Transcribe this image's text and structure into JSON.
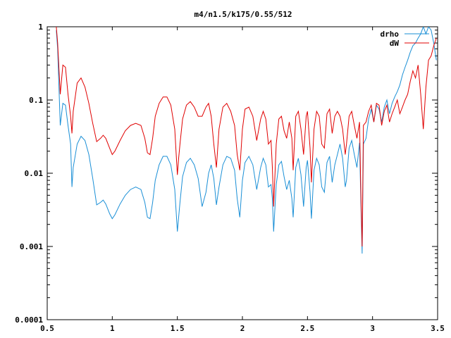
{
  "chart_data": {
    "type": "line",
    "title": "m4/n1.5/k175/0.55/512",
    "xlabel": "",
    "ylabel": "",
    "xlim": [
      0.5,
      3.5
    ],
    "ylim": [
      0.0001,
      1
    ],
    "yscale": "log",
    "grid": false,
    "legend_position": "top-right",
    "x_ticks": [
      {
        "value": 0.5,
        "label": "0.5"
      },
      {
        "value": 1.0,
        "label": "1"
      },
      {
        "value": 1.5,
        "label": "1.5"
      },
      {
        "value": 2.0,
        "label": "2"
      },
      {
        "value": 2.5,
        "label": "2.5"
      },
      {
        "value": 3.0,
        "label": "3"
      },
      {
        "value": 3.5,
        "label": "3.5"
      }
    ],
    "y_ticks": [
      {
        "value": 1,
        "label": "1"
      },
      {
        "value": 0.1,
        "label": "0.1"
      },
      {
        "value": 0.01,
        "label": "0.01"
      },
      {
        "value": 0.001,
        "label": "0.001"
      },
      {
        "value": 0.0001,
        "label": "0.0001"
      }
    ],
    "series": [
      {
        "name": "drho",
        "color": "#1a8fd6",
        "x": [
          0.57,
          0.58,
          0.6,
          0.62,
          0.64,
          0.66,
          0.68,
          0.69,
          0.7,
          0.73,
          0.76,
          0.79,
          0.82,
          0.85,
          0.88,
          0.91,
          0.93,
          0.95,
          0.98,
          1.0,
          1.02,
          1.06,
          1.1,
          1.14,
          1.18,
          1.22,
          1.25,
          1.27,
          1.29,
          1.31,
          1.33,
          1.36,
          1.39,
          1.42,
          1.45,
          1.48,
          1.5,
          1.51,
          1.52,
          1.54,
          1.57,
          1.6,
          1.63,
          1.66,
          1.69,
          1.72,
          1.74,
          1.76,
          1.78,
          1.8,
          1.82,
          1.85,
          1.88,
          1.91,
          1.94,
          1.96,
          1.98,
          2.0,
          2.02,
          2.05,
          2.08,
          2.11,
          2.14,
          2.16,
          2.18,
          2.2,
          2.22,
          2.23,
          2.24,
          2.26,
          2.28,
          2.3,
          2.32,
          2.34,
          2.36,
          2.38,
          2.39,
          2.41,
          2.43,
          2.45,
          2.47,
          2.49,
          2.5,
          2.52,
          2.53,
          2.55,
          2.57,
          2.59,
          2.61,
          2.63,
          2.65,
          2.67,
          2.69,
          2.71,
          2.73,
          2.75,
          2.77,
          2.79,
          2.8,
          2.82,
          2.84,
          2.86,
          2.88,
          2.9,
          2.91,
          2.92,
          2.93,
          2.95,
          2.97,
          2.99,
          3.01,
          3.03,
          3.05,
          3.07,
          3.09,
          3.11,
          3.13,
          3.15,
          3.17,
          3.19,
          3.21,
          3.23,
          3.25,
          3.27,
          3.29,
          3.31,
          3.33,
          3.35,
          3.37,
          3.39,
          3.41,
          3.43,
          3.45,
          3.47,
          3.49
        ],
        "y": [
          0.9,
          0.5,
          0.045,
          0.09,
          0.085,
          0.045,
          0.025,
          0.0065,
          0.012,
          0.025,
          0.032,
          0.028,
          0.018,
          0.0085,
          0.0037,
          0.004,
          0.0043,
          0.0038,
          0.0028,
          0.0024,
          0.0027,
          0.0038,
          0.005,
          0.006,
          0.0065,
          0.006,
          0.004,
          0.0025,
          0.0024,
          0.004,
          0.008,
          0.013,
          0.017,
          0.017,
          0.013,
          0.006,
          0.0016,
          0.0025,
          0.004,
          0.009,
          0.014,
          0.016,
          0.013,
          0.0085,
          0.0035,
          0.0055,
          0.01,
          0.013,
          0.0085,
          0.0037,
          0.0065,
          0.013,
          0.017,
          0.016,
          0.011,
          0.0045,
          0.0025,
          0.008,
          0.014,
          0.017,
          0.013,
          0.006,
          0.012,
          0.016,
          0.013,
          0.0065,
          0.007,
          0.0045,
          0.0016,
          0.007,
          0.013,
          0.0145,
          0.009,
          0.006,
          0.008,
          0.0045,
          0.0025,
          0.012,
          0.016,
          0.0095,
          0.0035,
          0.012,
          0.015,
          0.0055,
          0.0024,
          0.011,
          0.016,
          0.013,
          0.0065,
          0.0055,
          0.014,
          0.017,
          0.0075,
          0.013,
          0.018,
          0.025,
          0.016,
          0.0065,
          0.008,
          0.022,
          0.028,
          0.018,
          0.012,
          0.026,
          0.0045,
          0.0008,
          0.025,
          0.03,
          0.055,
          0.075,
          0.05,
          0.085,
          0.075,
          0.05,
          0.08,
          0.1,
          0.065,
          0.09,
          0.11,
          0.13,
          0.16,
          0.22,
          0.28,
          0.35,
          0.45,
          0.55,
          0.6,
          0.7,
          0.8,
          1.0,
          0.8,
          1.0,
          0.9,
          0.6,
          0.35
        ],
        "y_clipped_above_top": true
      },
      {
        "name": "dW",
        "color": "#e00000",
        "x": [
          0.57,
          0.58,
          0.6,
          0.62,
          0.64,
          0.66,
          0.68,
          0.69,
          0.7,
          0.73,
          0.76,
          0.79,
          0.82,
          0.85,
          0.88,
          0.91,
          0.93,
          0.95,
          0.98,
          1.0,
          1.02,
          1.06,
          1.1,
          1.14,
          1.18,
          1.22,
          1.25,
          1.27,
          1.29,
          1.31,
          1.33,
          1.36,
          1.39,
          1.42,
          1.45,
          1.48,
          1.5,
          1.51,
          1.52,
          1.54,
          1.57,
          1.6,
          1.63,
          1.66,
          1.69,
          1.72,
          1.74,
          1.76,
          1.78,
          1.8,
          1.82,
          1.85,
          1.88,
          1.91,
          1.94,
          1.96,
          1.98,
          2.0,
          2.02,
          2.05,
          2.08,
          2.11,
          2.14,
          2.16,
          2.18,
          2.2,
          2.22,
          2.23,
          2.24,
          2.26,
          2.28,
          2.3,
          2.32,
          2.34,
          2.36,
          2.38,
          2.39,
          2.41,
          2.43,
          2.45,
          2.47,
          2.49,
          2.5,
          2.52,
          2.53,
          2.55,
          2.57,
          2.59,
          2.61,
          2.63,
          2.65,
          2.67,
          2.69,
          2.71,
          2.73,
          2.75,
          2.77,
          2.79,
          2.8,
          2.82,
          2.84,
          2.86,
          2.88,
          2.9,
          2.91,
          2.92,
          2.93,
          2.95,
          2.97,
          2.99,
          3.01,
          3.03,
          3.05,
          3.07,
          3.09,
          3.11,
          3.13,
          3.15,
          3.17,
          3.19,
          3.21,
          3.23,
          3.25,
          3.27,
          3.29,
          3.31,
          3.33,
          3.35,
          3.37,
          3.39,
          3.41,
          3.43,
          3.45,
          3.47,
          3.49
        ],
        "y": [
          1.0,
          0.6,
          0.12,
          0.3,
          0.28,
          0.12,
          0.06,
          0.035,
          0.07,
          0.17,
          0.2,
          0.15,
          0.09,
          0.048,
          0.027,
          0.03,
          0.033,
          0.03,
          0.022,
          0.018,
          0.02,
          0.028,
          0.038,
          0.045,
          0.048,
          0.045,
          0.03,
          0.019,
          0.018,
          0.03,
          0.06,
          0.09,
          0.11,
          0.11,
          0.085,
          0.04,
          0.0095,
          0.016,
          0.025,
          0.055,
          0.085,
          0.095,
          0.08,
          0.06,
          0.06,
          0.08,
          0.09,
          0.06,
          0.025,
          0.012,
          0.04,
          0.08,
          0.09,
          0.07,
          0.045,
          0.018,
          0.011,
          0.04,
          0.075,
          0.08,
          0.06,
          0.028,
          0.055,
          0.07,
          0.055,
          0.025,
          0.028,
          0.012,
          0.0035,
          0.025,
          0.055,
          0.06,
          0.038,
          0.03,
          0.05,
          0.03,
          0.011,
          0.06,
          0.07,
          0.04,
          0.018,
          0.06,
          0.07,
          0.022,
          0.0075,
          0.04,
          0.07,
          0.06,
          0.025,
          0.022,
          0.065,
          0.075,
          0.035,
          0.06,
          0.07,
          0.06,
          0.04,
          0.018,
          0.025,
          0.06,
          0.07,
          0.045,
          0.03,
          0.05,
          0.006,
          0.001,
          0.045,
          0.05,
          0.07,
          0.085,
          0.05,
          0.09,
          0.085,
          0.045,
          0.07,
          0.085,
          0.05,
          0.065,
          0.08,
          0.1,
          0.065,
          0.08,
          0.1,
          0.12,
          0.18,
          0.25,
          0.2,
          0.3,
          0.12,
          0.04,
          0.15,
          0.35,
          0.4,
          0.55,
          0.7
        ],
        "y_clipped_above_top": true
      }
    ]
  }
}
